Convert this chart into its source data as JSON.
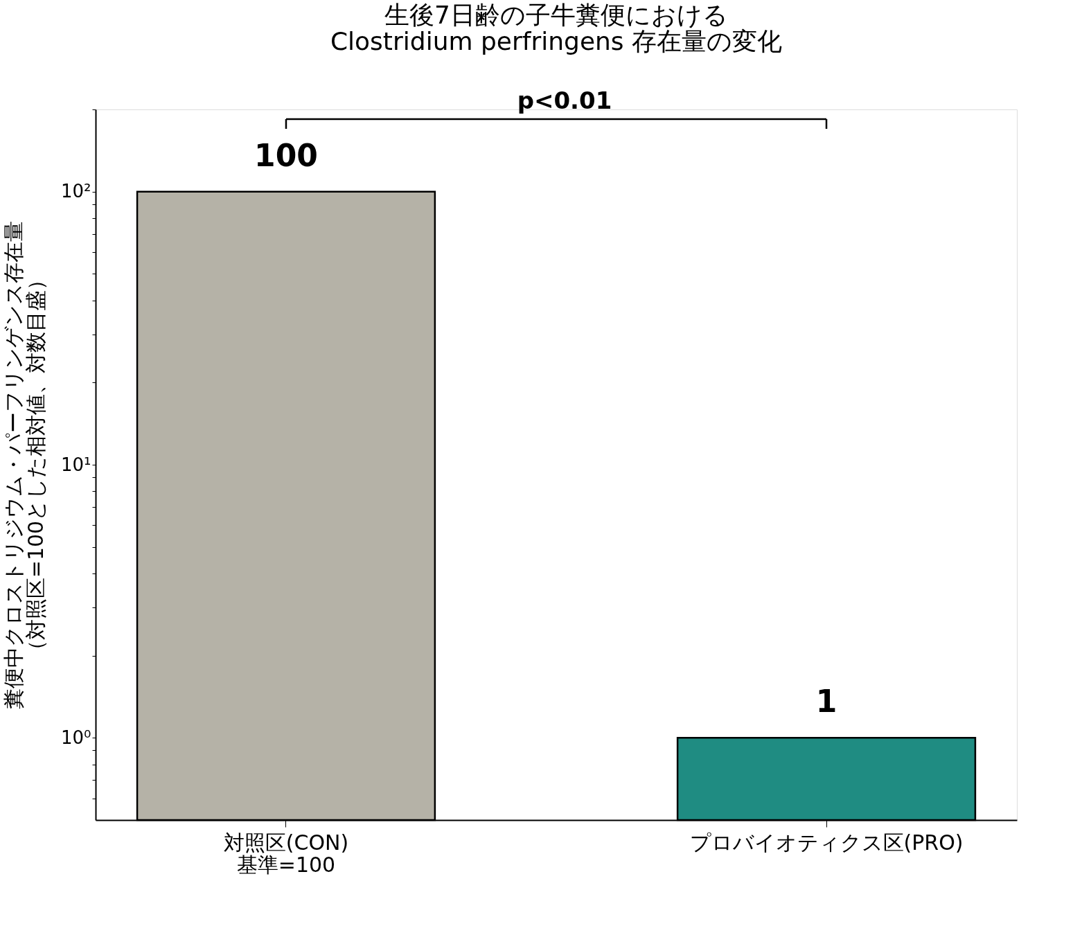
{
  "chart_data": {
    "type": "bar",
    "title": "生後7日齢の子牛糞便における\nClostridium perfringens 存在量の変化",
    "ylabel": "糞便中クロストリジウム・パーフリンゲンス存在量（対照区=100とした相対値、対数目盛）",
    "categories": [
      "対照区(CON)\n基準=100",
      "プロバイオティクス区(PRO)"
    ],
    "values": [
      100,
      1
    ],
    "colors": [
      "#b5b2a7",
      "#1f8c82"
    ],
    "log": true,
    "ylim": [
      0.5,
      200
    ],
    "yticks": [
      {
        "value": 0.6,
        "label": null
      },
      {
        "value": 0.7,
        "label": null
      },
      {
        "value": 0.8,
        "label": null
      },
      {
        "value": 0.9,
        "label": null
      },
      {
        "value": 1,
        "label": "10⁰"
      },
      {
        "value": 2,
        "label": null
      },
      {
        "value": 3,
        "label": null
      },
      {
        "value": 4,
        "label": null
      },
      {
        "value": 5,
        "label": null
      },
      {
        "value": 6,
        "label": null
      },
      {
        "value": 7,
        "label": null
      },
      {
        "value": 8,
        "label": null
      },
      {
        "value": 9,
        "label": null
      },
      {
        "value": 10,
        "label": "10¹"
      },
      {
        "value": 20,
        "label": null
      },
      {
        "value": 30,
        "label": null
      },
      {
        "value": 40,
        "label": null
      },
      {
        "value": 50,
        "label": null
      },
      {
        "value": 60,
        "label": null
      },
      {
        "value": 70,
        "label": null
      },
      {
        "value": 80,
        "label": null
      },
      {
        "value": 90,
        "label": null
      },
      {
        "value": 100,
        "label": "10²"
      },
      {
        "value": 200,
        "label": null
      }
    ],
    "data_labels": true,
    "annotations": [
      "p<0.01"
    ],
    "grid": false,
    "legend": false
  }
}
